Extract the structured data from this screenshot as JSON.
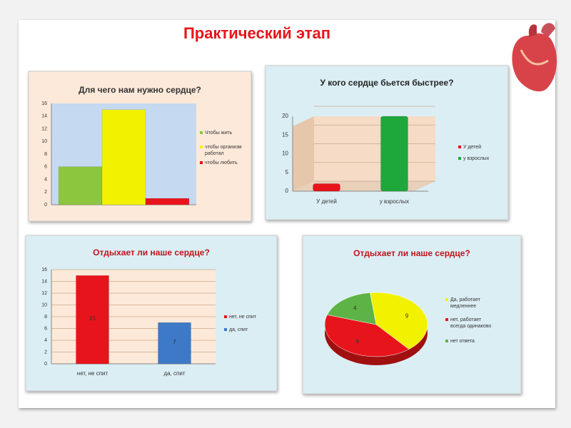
{
  "title": "Практический этап",
  "chart_data": [
    {
      "type": "bar",
      "title": "Для чего нам нужно сердце?",
      "categories": [
        null
      ],
      "series": [
        {
          "name": "Чтобы жить",
          "color": "#8cc63f",
          "values": [
            6
          ]
        },
        {
          "name": "чтобы организм работал",
          "color": "#f2f200",
          "values": [
            15
          ]
        },
        {
          "name": "чтобы любить",
          "color": "#e8141b",
          "values": [
            1
          ]
        }
      ],
      "ylim": [
        0,
        16
      ],
      "yticks": [
        0,
        2,
        4,
        6,
        8,
        10,
        12,
        14,
        16
      ],
      "grid": false,
      "legend": "right"
    },
    {
      "type": "bar",
      "title": "У кого сердце бьется быстрее?",
      "categories": [
        "У детей",
        "у взрослых"
      ],
      "series": [
        {
          "name": "У детей",
          "color": "#e8141b",
          "values": [
            2,
            null
          ]
        },
        {
          "name": "у взрослых",
          "color": "#1ea83c",
          "values": [
            null,
            20
          ]
        }
      ],
      "ylim": [
        0,
        20
      ],
      "yticks": [
        0,
        5,
        10,
        15,
        20
      ],
      "grid": true,
      "legend": "right"
    },
    {
      "type": "bar",
      "title": "Отдыхает ли наше сердце?",
      "categories": [
        "нет, не спит",
        "да, спит"
      ],
      "series": [
        {
          "name": "нет, не спит",
          "color": "#e8141b",
          "values": [
            15,
            null
          ]
        },
        {
          "name": "да, спит",
          "color": "#3d79c6",
          "values": [
            null,
            7
          ]
        }
      ],
      "ylim": [
        0,
        16
      ],
      "yticks": [
        0,
        2,
        4,
        6,
        8,
        10,
        12,
        14,
        16
      ],
      "grid": true,
      "legend": "right",
      "data_labels": true
    },
    {
      "type": "pie",
      "title": "Отдыхает ли наше сердце?",
      "labels": [
        "Да, работает медленнее",
        "нет, работает всегда одинаково",
        "нет ответа"
      ],
      "values": [
        9,
        9,
        4
      ],
      "colors": [
        "#f2f200",
        "#e8141b",
        "#5db346"
      ],
      "legend": "right",
      "data_labels": true
    }
  ]
}
